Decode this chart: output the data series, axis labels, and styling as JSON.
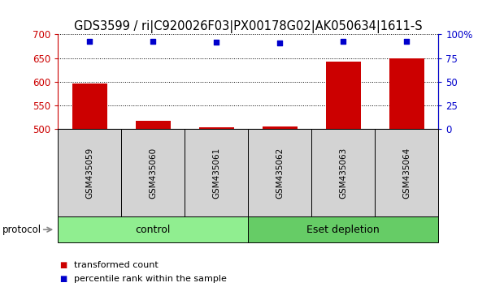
{
  "title": "GDS3599 / ri|C920026F03|PX00178G02|AK050634|1611-S",
  "samples": [
    "GSM435059",
    "GSM435060",
    "GSM435061",
    "GSM435062",
    "GSM435063",
    "GSM435064"
  ],
  "red_values": [
    597,
    517,
    504,
    506,
    643,
    650
  ],
  "blue_values": [
    93,
    93,
    92,
    91,
    93,
    93
  ],
  "ylim_left": [
    500,
    700
  ],
  "ylim_right": [
    0,
    100
  ],
  "yticks_left": [
    500,
    550,
    600,
    650,
    700
  ],
  "yticks_right": [
    0,
    25,
    50,
    75,
    100
  ],
  "yticklabels_right": [
    "0",
    "25",
    "50",
    "75",
    "100%"
  ],
  "groups": [
    {
      "label": "control",
      "start": 0,
      "end": 3,
      "color": "#90EE90"
    },
    {
      "label": "Eset depletion",
      "start": 3,
      "end": 6,
      "color": "#66CC66"
    }
  ],
  "red_color": "#CC0000",
  "blue_color": "#0000CC",
  "bar_width": 0.55,
  "title_fontsize": 10.5,
  "tick_fontsize": 8.5,
  "label_red": "transformed count",
  "label_blue": "percentile rank within the sample",
  "protocol_label": "protocol"
}
